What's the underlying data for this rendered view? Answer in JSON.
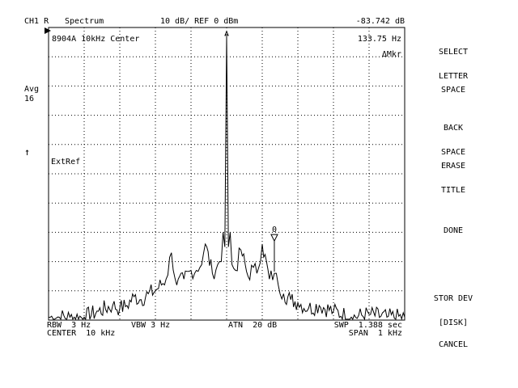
{
  "header": {
    "channel": "CH1 R",
    "mode": "Spectrum",
    "scale": "10 dB/ REF 0 dBm",
    "marker_value": "-83.742 dB"
  },
  "left": {
    "avg_label": "Avg",
    "avg_count": "16",
    "arrow": "↑"
  },
  "display": {
    "title": "8904A 10kHz Center",
    "marker_freq": "133.75 Hz",
    "marker_mode": "ΔMkr",
    "extref": "ExtRef",
    "marker_symbol_label": "0"
  },
  "footer": {
    "rbw": "RBW  3 Hz",
    "vbw": "VBW 3 Hz",
    "atn": "ATN  20 dB",
    "swp": "SWP  1.388 sec",
    "center": "CENTER  10 kHz",
    "span": "SPAN  1 kHz"
  },
  "softkeys": [
    {
      "line1": "SELECT",
      "line2": "LETTER"
    },
    {
      "line1": "SPACE",
      "line2": ""
    },
    {
      "line1": "BACK",
      "line2": "SPACE"
    },
    {
      "line1": "ERASE",
      "line2": "TITLE"
    },
    {
      "line1": "DONE",
      "line2": ""
    },
    {
      "line1": "STOR DEV",
      "line2": "[DISK]"
    },
    {
      "line1": "CANCEL",
      "line2": ""
    }
  ],
  "chart_data": {
    "type": "line",
    "x_start_hz": 9500,
    "x_stop_hz": 10500,
    "ref_level_dbm": 0,
    "db_per_div": 10,
    "grid": true,
    "series": [
      {
        "x": [
          9500,
          9530,
          9560,
          9600,
          9640,
          9680,
          9700,
          9720,
          9740,
          9760,
          9780,
          9800,
          9830,
          9845,
          9860,
          9880,
          9900,
          9915,
          9925,
          9940,
          9960,
          9975,
          9985,
          9990,
          9995,
          10000,
          10005,
          10010,
          10015,
          10025,
          10040,
          10060,
          10075,
          10085,
          10100,
          10120,
          10134,
          10145,
          10160,
          10180,
          10200,
          10230,
          10260,
          10300,
          10350,
          10400,
          10450,
          10500
        ],
        "y": [
          -99,
          -99,
          -99,
          -99,
          -97,
          -95,
          -96,
          -95,
          -92,
          -93,
          -91,
          -90,
          -86,
          -77,
          -88,
          -86,
          -83,
          -83,
          -82,
          -74,
          -84,
          -81,
          -80,
          -70,
          -75,
          -3,
          -75,
          -70,
          -81,
          -83,
          -76,
          -85,
          -82,
          -84,
          -74,
          -86,
          -84,
          -88,
          -91,
          -93,
          -94,
          -96,
          -95,
          -97,
          -99,
          -98,
          -99,
          -99
        ]
      }
    ]
  }
}
